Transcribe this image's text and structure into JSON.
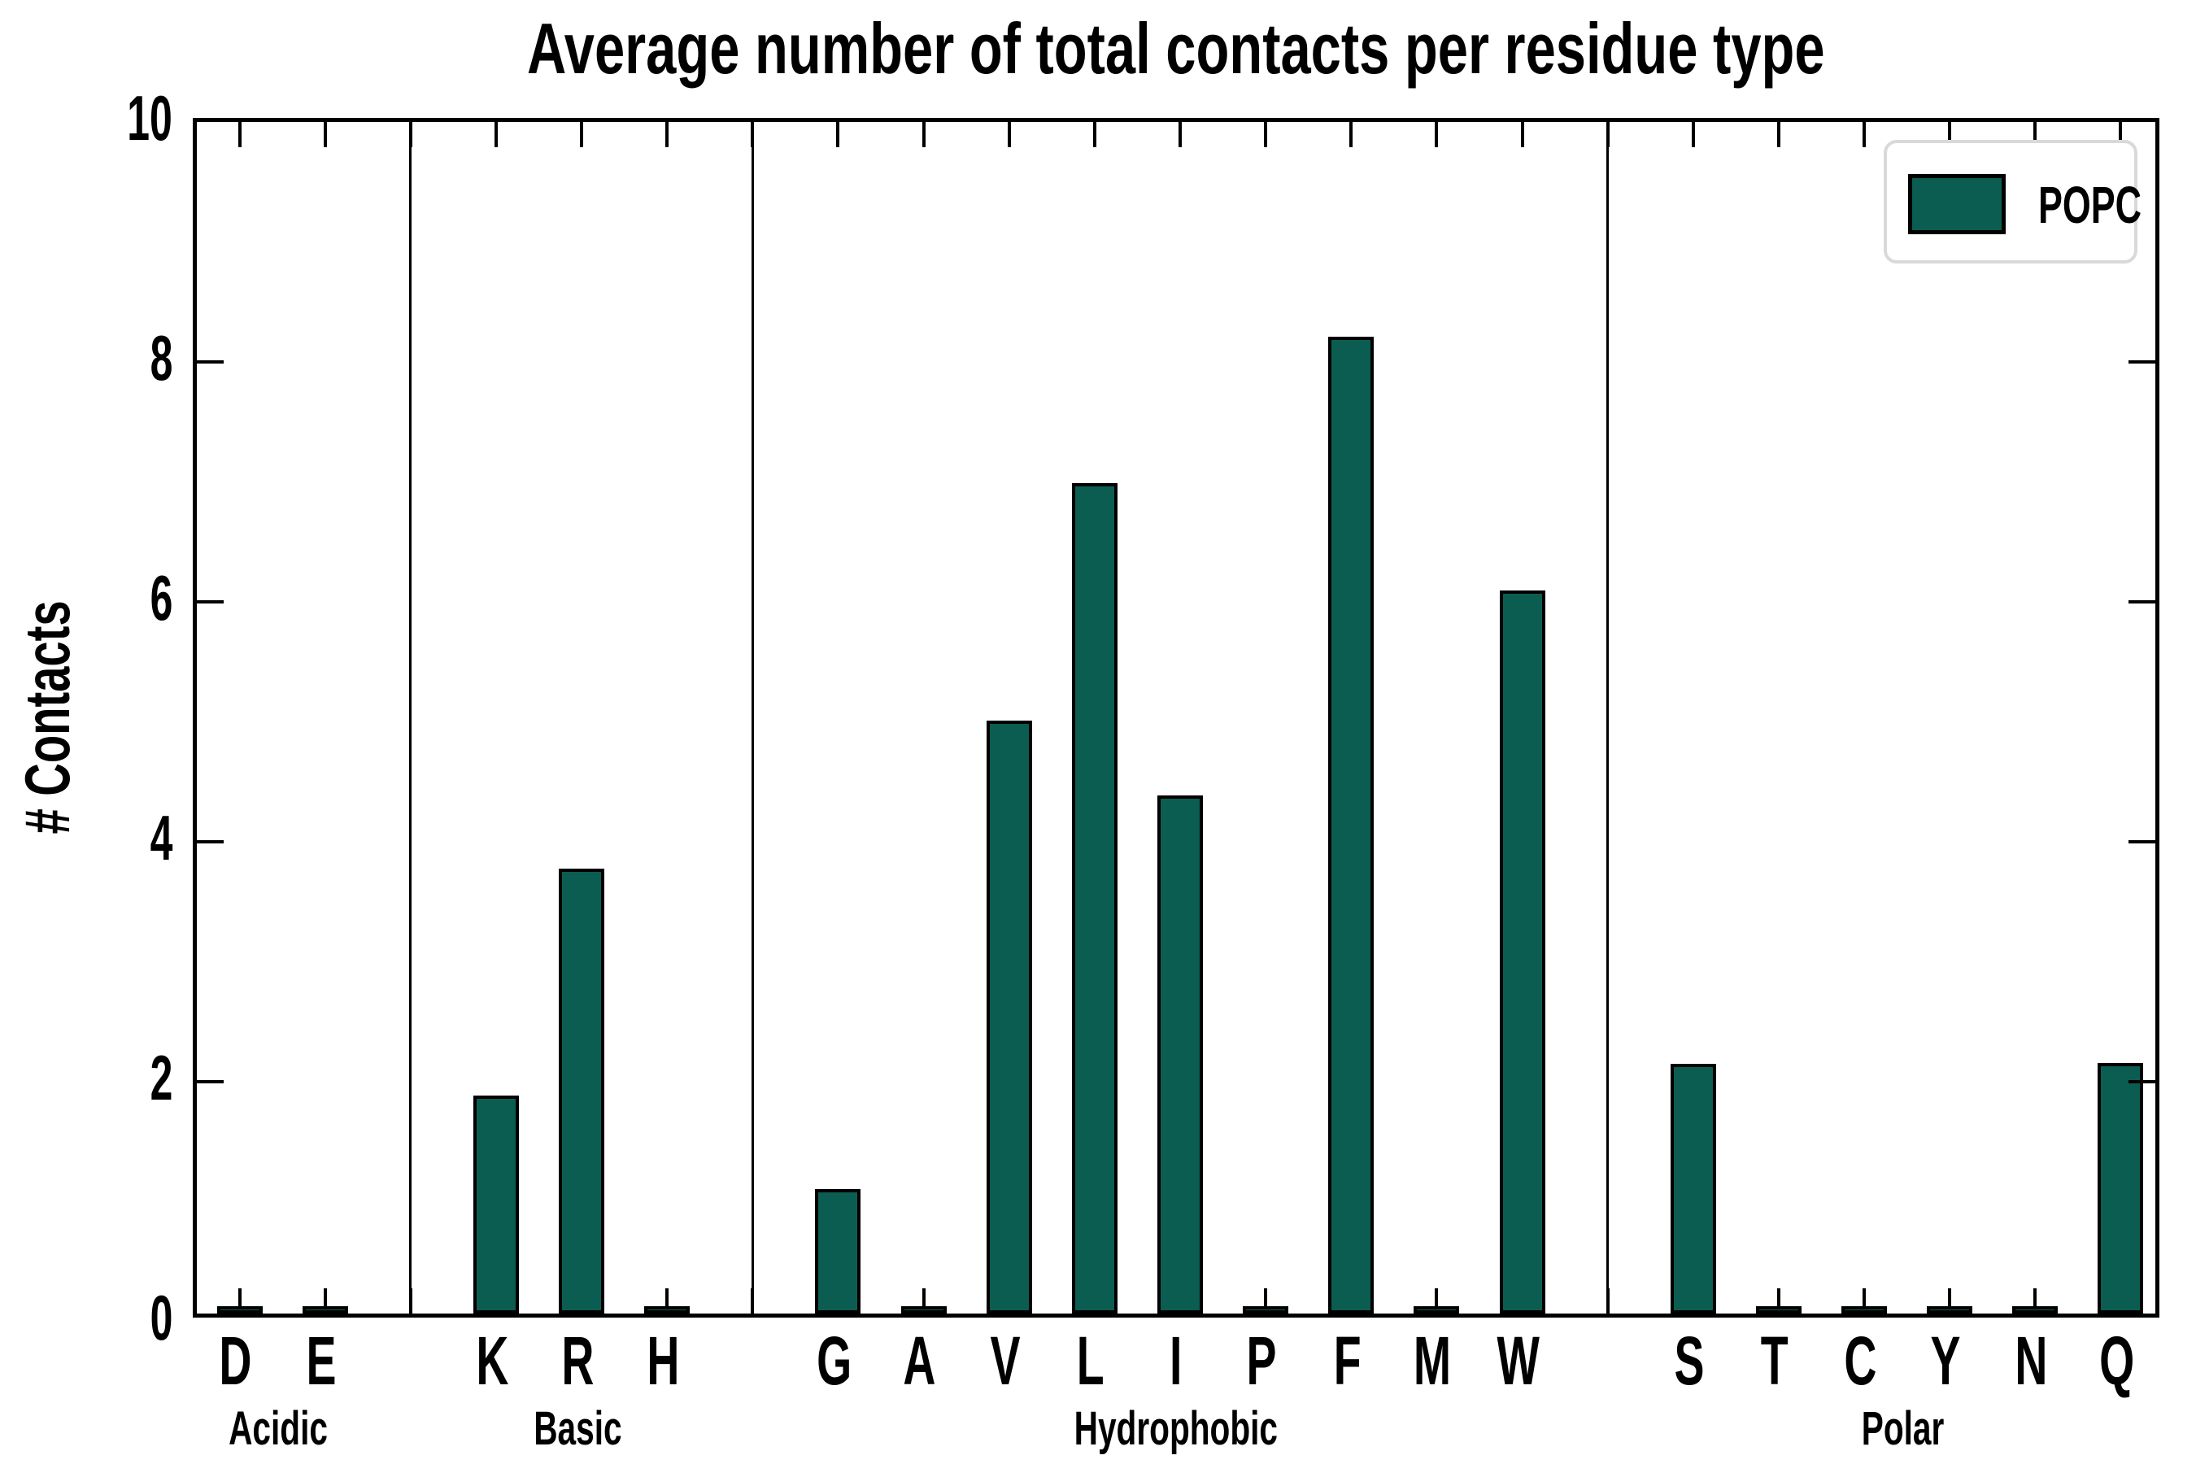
{
  "title": "Average number of total contacts per residue type",
  "y_axis": {
    "label": "# Contacts",
    "ticks": [
      "0",
      "2",
      "4",
      "6",
      "8",
      "10"
    ],
    "min": 0,
    "max": 10
  },
  "legend": {
    "label": "POPC",
    "swatch_color": "#0B5D51"
  },
  "colors": {
    "bar_fill": "#0B5D51",
    "bar_edge": "#000000",
    "axis": "#000000",
    "legend_border": "#d9d9d9"
  },
  "chart_data": {
    "type": "bar",
    "title": "Average number of total contacts per residue type",
    "xlabel": "",
    "ylabel": "# Contacts",
    "ylim": [
      0,
      10
    ],
    "yticks": [
      0,
      2,
      4,
      6,
      8,
      10
    ],
    "grid": false,
    "legend_entries": [
      "POPC"
    ],
    "legend_position": "upper right",
    "groups": [
      {
        "label": "Acidic",
        "categories": [
          "D",
          "E"
        ],
        "values": [
          0.02,
          0.02
        ]
      },
      {
        "label": "Basic",
        "categories": [
          "K",
          "R",
          "H"
        ],
        "values": [
          1.82,
          3.71,
          0.02
        ]
      },
      {
        "label": "Hydrophobic",
        "categories": [
          "G",
          "A",
          "V",
          "L",
          "I",
          "P",
          "F",
          "M",
          "W"
        ],
        "values": [
          1.04,
          0.02,
          4.94,
          6.92,
          4.32,
          0.02,
          8.14,
          0.02,
          6.03
        ]
      },
      {
        "label": "Polar",
        "categories": [
          "S",
          "T",
          "C",
          "Y",
          "N",
          "Q"
        ],
        "values": [
          2.08,
          0.02,
          0.02,
          0.02,
          0.02,
          2.09
        ]
      }
    ]
  }
}
